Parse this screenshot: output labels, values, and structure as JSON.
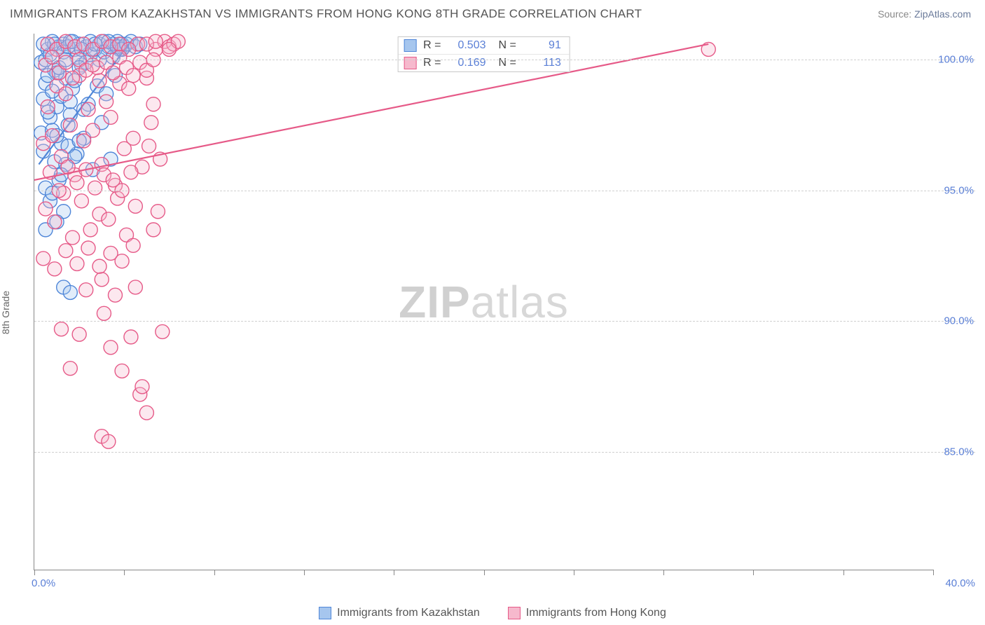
{
  "title": "IMMIGRANTS FROM KAZAKHSTAN VS IMMIGRANTS FROM HONG KONG 8TH GRADE CORRELATION CHART",
  "source_label": "Source:",
  "source_name": "ZipAtlas.com",
  "watermark_a": "ZIP",
  "watermark_b": "atlas",
  "chart": {
    "type": "scatter",
    "ylabel": "8th Grade",
    "xlim": [
      0.0,
      40.0
    ],
    "ylim": [
      80.5,
      101.0
    ],
    "xtick_label_min": "0.0%",
    "xtick_label_max": "40.0%",
    "x_ticks": [
      0,
      4,
      8,
      12,
      16,
      20,
      24,
      28,
      32,
      36,
      40
    ],
    "y_gridlines": [
      {
        "v": 85.0,
        "label": "85.0%"
      },
      {
        "v": 90.0,
        "label": "90.0%"
      },
      {
        "v": 95.0,
        "label": "95.0%"
      },
      {
        "v": 100.0,
        "label": "100.0%"
      }
    ],
    "background_color": "#ffffff",
    "grid_color": "#d0d0d0",
    "marker_radius": 10,
    "marker_stroke_width": 1.4,
    "marker_fill_opacity": 0.32,
    "line_width": 2.2,
    "series": [
      {
        "name": "Immigrants from Kazakhstan",
        "stroke": "#4f86d8",
        "fill": "#a6c6ee",
        "R": "0.503",
        "N": "91",
        "trend": {
          "x1": 0.2,
          "y1": 96.0,
          "x2": 4.2,
          "y2": 100.6
        },
        "points": [
          [
            0.3,
            97.2
          ],
          [
            0.4,
            98.5
          ],
          [
            0.5,
            99.1
          ],
          [
            0.6,
            100.4
          ],
          [
            0.7,
            97.8
          ],
          [
            0.8,
            100.7
          ],
          [
            0.9,
            99.6
          ],
          [
            1.0,
            98.2
          ],
          [
            1.1,
            100.5
          ],
          [
            1.2,
            96.8
          ],
          [
            1.3,
            100.6
          ],
          [
            1.4,
            99.3
          ],
          [
            1.5,
            97.5
          ],
          [
            1.6,
            100.7
          ],
          [
            1.7,
            98.9
          ],
          [
            1.8,
            100.4
          ],
          [
            1.9,
            96.4
          ],
          [
            2.0,
            100.6
          ],
          [
            2.1,
            99.8
          ],
          [
            2.2,
            97.0
          ],
          [
            2.3,
            100.5
          ],
          [
            2.4,
            98.3
          ],
          [
            2.5,
            100.7
          ],
          [
            2.6,
            95.8
          ],
          [
            2.7,
            100.4
          ],
          [
            2.8,
            99.0
          ],
          [
            2.9,
            100.6
          ],
          [
            3.0,
            97.6
          ],
          [
            3.1,
            100.7
          ],
          [
            3.2,
            98.7
          ],
          [
            3.3,
            100.5
          ],
          [
            3.4,
            96.2
          ],
          [
            3.5,
            100.6
          ],
          [
            3.6,
            99.4
          ],
          [
            3.7,
            100.7
          ],
          [
            3.8,
            100.4
          ],
          [
            3.9,
            100.6
          ],
          [
            4.0,
            100.5
          ],
          [
            0.5,
            95.1
          ],
          [
            0.7,
            94.6
          ],
          [
            0.9,
            96.1
          ],
          [
            1.1,
            95.4
          ],
          [
            1.3,
            94.2
          ],
          [
            1.5,
            96.7
          ],
          [
            0.4,
            96.5
          ],
          [
            0.6,
            98.0
          ],
          [
            0.8,
            97.3
          ],
          [
            1.0,
            99.5
          ],
          [
            1.2,
            98.6
          ],
          [
            1.4,
            96.0
          ],
          [
            1.6,
            97.9
          ],
          [
            1.8,
            99.2
          ],
          [
            2.0,
            96.9
          ],
          [
            2.2,
            98.1
          ],
          [
            0.3,
            99.9
          ],
          [
            0.5,
            100.0
          ],
          [
            0.7,
            100.2
          ],
          [
            0.9,
            100.6
          ],
          [
            1.1,
            99.7
          ],
          [
            1.3,
            100.3
          ],
          [
            1.5,
            100.5
          ],
          [
            1.7,
            100.7
          ],
          [
            1.9,
            100.1
          ],
          [
            2.1,
            100.4
          ],
          [
            2.3,
            99.9
          ],
          [
            2.5,
            100.2
          ],
          [
            2.7,
            100.6
          ],
          [
            2.9,
            100.0
          ],
          [
            3.1,
            100.3
          ],
          [
            3.3,
            100.7
          ],
          [
            3.5,
            100.1
          ],
          [
            3.7,
            100.5
          ],
          [
            3.9,
            100.4
          ],
          [
            4.1,
            100.6
          ],
          [
            4.3,
            100.7
          ],
          [
            4.5,
            100.5
          ],
          [
            4.7,
            100.6
          ],
          [
            1.3,
            91.3
          ],
          [
            1.6,
            91.1
          ],
          [
            0.5,
            93.5
          ],
          [
            0.8,
            94.9
          ],
          [
            1.0,
            93.8
          ],
          [
            0.4,
            100.6
          ],
          [
            0.6,
            99.4
          ],
          [
            0.8,
            98.8
          ],
          [
            1.0,
            97.1
          ],
          [
            1.2,
            95.6
          ],
          [
            1.4,
            100.0
          ],
          [
            1.6,
            98.4
          ],
          [
            1.8,
            96.3
          ],
          [
            2.0,
            99.7
          ]
        ]
      },
      {
        "name": "Immigrants from Hong Kong",
        "stroke": "#e65a88",
        "fill": "#f6b9cd",
        "R": "0.169",
        "N": "113",
        "trend": {
          "x1": 0.0,
          "y1": 95.4,
          "x2": 30.0,
          "y2": 100.6
        },
        "points": [
          [
            0.4,
            96.8
          ],
          [
            0.6,
            98.2
          ],
          [
            0.8,
            97.1
          ],
          [
            1.0,
            99.0
          ],
          [
            1.2,
            96.3
          ],
          [
            1.4,
            98.7
          ],
          [
            1.6,
            97.5
          ],
          [
            1.8,
            95.6
          ],
          [
            2.0,
            99.4
          ],
          [
            2.2,
            96.9
          ],
          [
            2.4,
            98.1
          ],
          [
            2.6,
            97.3
          ],
          [
            2.8,
            99.7
          ],
          [
            3.0,
            96.0
          ],
          [
            3.2,
            98.4
          ],
          [
            3.4,
            97.8
          ],
          [
            3.6,
            95.2
          ],
          [
            3.8,
            99.1
          ],
          [
            4.0,
            96.6
          ],
          [
            4.2,
            98.9
          ],
          [
            4.4,
            97.0
          ],
          [
            4.6,
            100.6
          ],
          [
            4.8,
            95.9
          ],
          [
            5.0,
            99.3
          ],
          [
            5.2,
            97.6
          ],
          [
            5.4,
            100.4
          ],
          [
            5.6,
            96.2
          ],
          [
            5.8,
            100.7
          ],
          [
            6.0,
            100.5
          ],
          [
            6.2,
            100.6
          ],
          [
            6.4,
            100.7
          ],
          [
            0.5,
            94.3
          ],
          [
            0.9,
            93.8
          ],
          [
            1.3,
            94.9
          ],
          [
            1.7,
            93.2
          ],
          [
            2.1,
            94.6
          ],
          [
            2.5,
            93.5
          ],
          [
            2.9,
            94.1
          ],
          [
            3.3,
            93.9
          ],
          [
            3.7,
            94.7
          ],
          [
            4.1,
            93.3
          ],
          [
            4.5,
            94.4
          ],
          [
            0.7,
            95.7
          ],
          [
            1.1,
            95.0
          ],
          [
            1.5,
            95.9
          ],
          [
            1.9,
            95.3
          ],
          [
            2.3,
            95.8
          ],
          [
            2.7,
            95.1
          ],
          [
            3.1,
            95.6
          ],
          [
            3.5,
            95.4
          ],
          [
            3.9,
            95.0
          ],
          [
            4.3,
            95.7
          ],
          [
            0.6,
            100.6
          ],
          [
            1.0,
            100.4
          ],
          [
            1.4,
            100.7
          ],
          [
            1.8,
            100.5
          ],
          [
            2.2,
            100.6
          ],
          [
            2.6,
            100.4
          ],
          [
            3.0,
            100.7
          ],
          [
            3.4,
            100.5
          ],
          [
            3.8,
            100.6
          ],
          [
            4.2,
            100.4
          ],
          [
            5.0,
            100.6
          ],
          [
            5.4,
            100.7
          ],
          [
            6.0,
            100.4
          ],
          [
            1.2,
            89.7
          ],
          [
            2.0,
            89.5
          ],
          [
            3.1,
            90.3
          ],
          [
            3.4,
            89.0
          ],
          [
            4.3,
            89.4
          ],
          [
            2.3,
            91.2
          ],
          [
            3.0,
            91.6
          ],
          [
            3.6,
            91.0
          ],
          [
            4.5,
            91.3
          ],
          [
            1.6,
            88.2
          ],
          [
            3.9,
            88.1
          ],
          [
            4.7,
            87.2
          ],
          [
            4.8,
            87.5
          ],
          [
            5.0,
            86.5
          ],
          [
            3.0,
            85.6
          ],
          [
            3.3,
            85.4
          ],
          [
            5.3,
            93.5
          ],
          [
            5.5,
            94.2
          ],
          [
            5.1,
            96.7
          ],
          [
            5.3,
            98.3
          ],
          [
            5.7,
            89.6
          ],
          [
            30.0,
            100.4
          ],
          [
            0.5,
            99.8
          ],
          [
            0.8,
            100.1
          ],
          [
            1.1,
            99.5
          ],
          [
            1.4,
            99.9
          ],
          [
            1.7,
            99.3
          ],
          [
            2.0,
            100.0
          ],
          [
            2.3,
            99.6
          ],
          [
            2.6,
            99.8
          ],
          [
            2.9,
            99.2
          ],
          [
            3.2,
            99.9
          ],
          [
            3.5,
            99.5
          ],
          [
            3.8,
            100.1
          ],
          [
            4.1,
            99.7
          ],
          [
            4.4,
            99.4
          ],
          [
            4.7,
            99.9
          ],
          [
            5.0,
            99.6
          ],
          [
            5.3,
            100.0
          ],
          [
            0.4,
            92.4
          ],
          [
            0.9,
            92.0
          ],
          [
            1.4,
            92.7
          ],
          [
            1.9,
            92.2
          ],
          [
            2.4,
            92.8
          ],
          [
            2.9,
            92.1
          ],
          [
            3.4,
            92.6
          ],
          [
            3.9,
            92.3
          ],
          [
            4.4,
            92.9
          ]
        ]
      }
    ],
    "legend": [
      {
        "swatch_fill": "#a6c6ee",
        "swatch_stroke": "#4f86d8",
        "label": "Immigrants from Kazakhstan"
      },
      {
        "swatch_fill": "#f6b9cd",
        "swatch_stroke": "#e65a88",
        "label": "Immigrants from Hong Kong"
      }
    ]
  }
}
